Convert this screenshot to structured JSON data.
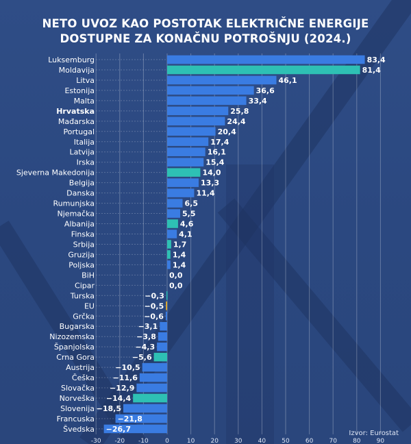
{
  "chart_data": {
    "type": "bar",
    "orientation": "horizontal",
    "title": "NETO UVOZ KAO POSTOTAK ELEKTRIČNE ENERGIJE DOSTUPNE ZA KONAČNU POTROŠNJU (2024.)",
    "title_lines": [
      "NETO UVOZ KAO POSTOTAK ELEKTRIČNE ENERGIJE",
      "DOSTUPNE ZA KONAČNU POTROŠNJU (2024.)"
    ],
    "xlabel": "%",
    "xlim": [
      -30,
      90
    ],
    "xticks": [
      -30,
      -20,
      -10,
      0,
      10,
      20,
      30,
      40,
      50,
      60,
      70,
      80,
      90
    ],
    "grid": true,
    "categories": [
      "Luksemburg",
      "Moldavija",
      "Litva",
      "Estonija",
      "Malta",
      "Hrvatska",
      "Mađarska",
      "Portugal",
      "Italija",
      "Latvija",
      "Irska",
      "Sjeverna Makedonija",
      "Belgija",
      "Danska",
      "Rumunjska",
      "Njemačka",
      "Albanija",
      "Finska",
      "Srbija",
      "Gruzija",
      "Poljska",
      "BiH",
      "Cipar",
      "Turska",
      "EU",
      "Grčka",
      "Bugarska",
      "Nizozemska",
      "Španjolska",
      "Crna Gora",
      "Austrija",
      "Češka",
      "Slovačka",
      "Norveška",
      "Slovenija",
      "Francuska",
      "Švedska"
    ],
    "values": [
      83.4,
      81.4,
      46.1,
      36.6,
      33.4,
      25.8,
      24.4,
      20.4,
      17.4,
      16.1,
      15.4,
      14.0,
      13.3,
      11.4,
      6.5,
      5.5,
      4.6,
      4.1,
      1.7,
      1.4,
      1.4,
      0.0,
      0.0,
      -0.3,
      -0.5,
      -0.6,
      -3.1,
      -3.8,
      -4.3,
      -5.6,
      -10.5,
      -11.6,
      -12.9,
      -14.4,
      -18.5,
      -21.8,
      -26.7
    ],
    "value_labels": [
      "83,4",
      "81,4",
      "46,1",
      "36,6",
      "33,4",
      "25,8",
      "24,4",
      "20,4",
      "17,4",
      "16,1",
      "15,4",
      "14,0",
      "13,3",
      "11,4",
      "6,5",
      "5,5",
      "4,6",
      "4,1",
      "1,7",
      "1,4",
      "1,4",
      "0,0",
      "0,0",
      "−0,3",
      "−0,5",
      "−0,6",
      "−3,1",
      "−3,8",
      "−4,3",
      "−5,6",
      "−10,5",
      "−11,6",
      "−12,9",
      "−14,4",
      "−18,5",
      "−21,8",
      "−26,7"
    ],
    "groups": [
      "eu",
      "non-eu",
      "eu",
      "eu",
      "eu",
      "highlight",
      "eu",
      "eu",
      "eu",
      "eu",
      "eu",
      "non-eu",
      "eu",
      "eu",
      "eu",
      "eu",
      "non-eu",
      "eu",
      "non-eu",
      "non-eu",
      "eu",
      "non-eu",
      "eu",
      "non-eu",
      "eu-total",
      "eu",
      "eu",
      "eu",
      "eu",
      "non-eu",
      "eu",
      "eu",
      "eu",
      "non-eu",
      "eu",
      "eu",
      "eu"
    ],
    "bold_category": "Hrvatska",
    "colors": {
      "eu": "#3a7ce2",
      "highlight": "#3a7ce2",
      "non-eu": "#2ec0b4",
      "eu-total": "#f0b429"
    }
  },
  "source": "Izvor: Eurostat"
}
